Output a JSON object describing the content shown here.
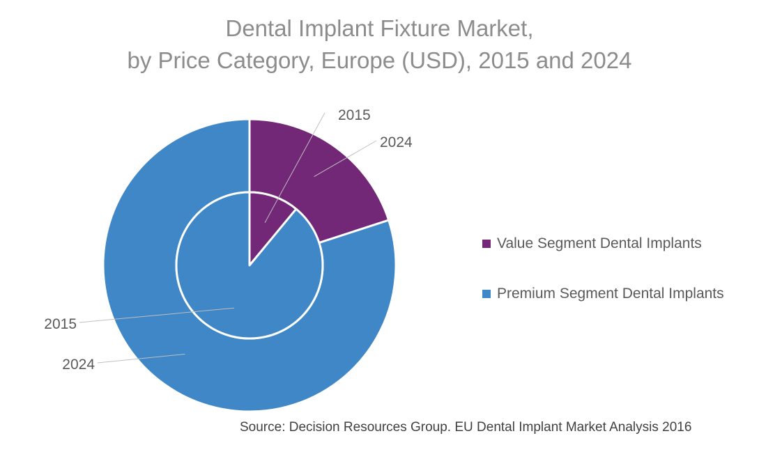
{
  "chart_data": {
    "type": "pie",
    "subtype": "doughnut",
    "title": [
      "Dental Implant Fixture Market,",
      "by Price Category, Europe (USD), 2015 and 2024"
    ],
    "rings": [
      {
        "name": "2015",
        "position": "inner",
        "values": [
          11,
          89
        ]
      },
      {
        "name": "2024",
        "position": "outer",
        "values": [
          20,
          80
        ]
      }
    ],
    "categories": [
      "Value Segment Dental Implants",
      "Premium Segment Dental Implants"
    ],
    "colors": [
      "#722777",
      "#3f87c6"
    ],
    "legend": "right",
    "source": "Source: Decision Resources Group. EU Dental Implant Market Analysis 2016"
  }
}
